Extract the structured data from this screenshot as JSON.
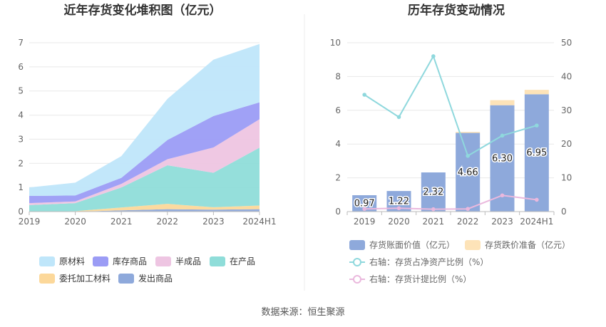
{
  "source_note": "数据来源：恒生聚源",
  "chart_data": [
    {
      "type": "area",
      "title": "近年存货变化堆积图（亿元）",
      "stacked": true,
      "x": [
        "2019",
        "2020",
        "2021",
        "2022",
        "2023",
        "2024H1"
      ],
      "ylim": [
        0,
        7
      ],
      "yticks": [
        0,
        1,
        2,
        3,
        4,
        5,
        6,
        7
      ],
      "grid": true,
      "legend_placement": "bottom",
      "series": [
        {
          "name": "发出商品",
          "color": "#8ea9db",
          "values": [
            0.0,
            0.0,
            0.05,
            0.1,
            0.08,
            0.1
          ]
        },
        {
          "name": "委托加工材料",
          "color": "#fcd89a",
          "values": [
            0.0,
            0.02,
            0.12,
            0.22,
            0.1,
            0.15
          ]
        },
        {
          "name": "在产品",
          "color": "#8fddd9",
          "values": [
            0.27,
            0.33,
            0.83,
            1.6,
            1.43,
            2.4
          ]
        },
        {
          "name": "半成品",
          "color": "#eec5e2",
          "values": [
            0.08,
            0.07,
            0.15,
            0.25,
            1.05,
            1.18
          ]
        },
        {
          "name": "库存商品",
          "color": "#9b9cf5",
          "values": [
            0.3,
            0.25,
            0.25,
            0.8,
            1.3,
            0.7
          ]
        },
        {
          "name": "原材料",
          "color": "#bfe6fa",
          "values": [
            0.35,
            0.53,
            0.9,
            1.7,
            2.34,
            2.42
          ]
        }
      ],
      "legend_order": [
        "原材料",
        "库存商品",
        "半成品",
        "在产品",
        "委托加工材料",
        "发出商品"
      ]
    },
    {
      "type": "bar",
      "title": "历年存货变动情况",
      "categories": [
        "2019",
        "2020",
        "2021",
        "2022",
        "2023",
        "2024H1"
      ],
      "ylim": [
        0,
        10
      ],
      "yticks": [
        0,
        2,
        4,
        6,
        8,
        10
      ],
      "y2lim": [
        0,
        50
      ],
      "y2ticks": [
        0,
        10,
        20,
        30,
        40,
        50
      ],
      "grid": true,
      "legend_placement": "bottom",
      "series": [
        {
          "name": "存货账面价值（亿元）",
          "kind": "bar",
          "color": "#8ea9db",
          "values": [
            0.97,
            1.22,
            2.32,
            4.66,
            6.3,
            6.95
          ],
          "labels": [
            "0.97",
            "1.22",
            "2.32",
            "4.66",
            "6.30",
            "6.95"
          ]
        },
        {
          "name": "存货跌价准备（亿元）",
          "kind": "bar",
          "stacked": true,
          "color": "#fde3b8",
          "values": [
            0.0,
            0.0,
            0.0,
            0.06,
            0.3,
            0.26
          ]
        },
        {
          "name": "右轴：存货占净资产比例（%）",
          "kind": "line",
          "axis": "right",
          "color": "#8fd8dd",
          "values": [
            34.6,
            28.0,
            46.0,
            16.5,
            22.5,
            25.5
          ]
        },
        {
          "name": "右轴：存货计提比例（%）",
          "kind": "line",
          "axis": "right",
          "color": "#eab8dd",
          "values": [
            0.8,
            1.0,
            0.7,
            0.8,
            4.8,
            3.5
          ]
        }
      ]
    }
  ]
}
